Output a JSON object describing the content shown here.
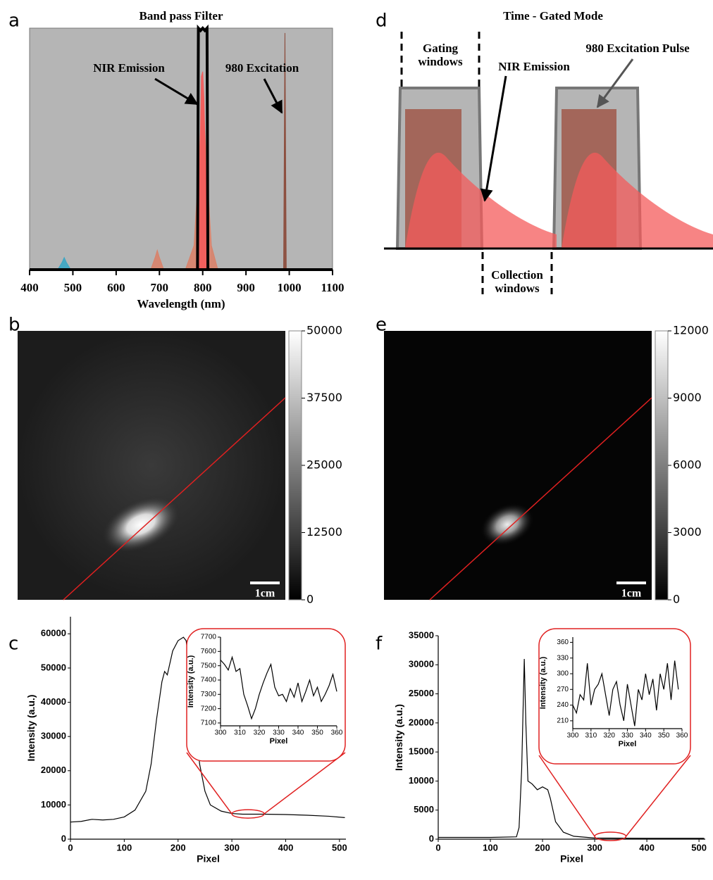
{
  "chart_data": [
    {
      "panel_label": "a",
      "type": "area",
      "title": "Band pass Filter",
      "xlabel": "Wavelength (nm)",
      "xlim": [
        400,
        1100
      ],
      "xticks": [
        400,
        500,
        600,
        700,
        800,
        900,
        1000,
        1100
      ],
      "ylim": [
        0,
        1
      ],
      "background": "#b5b5b5",
      "annotations": [
        "NIR Emission",
        "980 Excitation"
      ],
      "series": [
        {
          "color": "#3aa6c4",
          "x": [
            465,
            475,
            480,
            485,
            495
          ],
          "values": [
            0,
            0.03,
            0.05,
            0.03,
            0
          ]
        },
        {
          "color": "#d9826a",
          "x": [
            680,
            690,
            695,
            700,
            710
          ],
          "values": [
            0,
            0.05,
            0.08,
            0.05,
            0
          ]
        },
        {
          "color": "#d9826a",
          "x": [
            760,
            780,
            790,
            800,
            810,
            820,
            835
          ],
          "values": [
            0,
            0.1,
            0.4,
            0.75,
            0.4,
            0.1,
            0
          ]
        },
        {
          "color": "#f45b5b",
          "x": [
            785,
            792,
            797,
            800,
            803,
            808,
            815
          ],
          "values": [
            0,
            0.3,
            0.8,
            0.82,
            0.7,
            0.3,
            0
          ]
        },
        {
          "color": "#8b4a3a",
          "x": [
            987,
            990,
            993
          ],
          "values": [
            0,
            0.98,
            0
          ]
        },
        {
          "color": "#000000",
          "style": "outline",
          "x": [
            780,
            788,
            790,
            795,
            800,
            805,
            810,
            812,
            820
          ],
          "values": [
            0,
            0,
            1,
            0.99,
            1,
            0.99,
            1,
            0,
            0
          ]
        }
      ]
    },
    {
      "panel_label": "d",
      "type": "diagram",
      "title": "Time - Gated Mode",
      "gating_label": [
        "Gating",
        "windows"
      ],
      "emission_label": "NIR Emission",
      "pulse_label": "980 Excitation Pulse",
      "collection_label": [
        "Collection",
        "windows"
      ]
    },
    {
      "panel_label": "b",
      "type": "image",
      "ylim": [
        0,
        50000
      ],
      "yticks": [
        0,
        12500,
        25000,
        37500,
        50000
      ],
      "scale_bar": "1cm"
    },
    {
      "panel_label": "e",
      "type": "image",
      "ylim": [
        0,
        12000
      ],
      "yticks": [
        0,
        3000,
        6000,
        9000,
        12000
      ],
      "scale_bar": "1cm"
    },
    {
      "panel_label": "c",
      "type": "line",
      "xlabel": "Pixel",
      "ylabel": "Intensity (a.u.)",
      "xlim": [
        0,
        512
      ],
      "xticks": [
        0,
        100,
        200,
        300,
        400,
        500
      ],
      "ylim": [
        0,
        65000
      ],
      "yticks": [
        0,
        10000,
        20000,
        30000,
        40000,
        50000,
        60000
      ],
      "series": [
        {
          "color": "#000000",
          "x": [
            0,
            20,
            40,
            60,
            80,
            100,
            120,
            140,
            150,
            160,
            170,
            175,
            180,
            190,
            200,
            210,
            215,
            220,
            225,
            230,
            240,
            250,
            260,
            280,
            300,
            320,
            340,
            360,
            400,
            440,
            480,
            510
          ],
          "values": [
            5000,
            5200,
            5800,
            5600,
            5800,
            6500,
            8500,
            14000,
            22000,
            35000,
            46000,
            49000,
            48000,
            55000,
            58000,
            59000,
            58000,
            52000,
            50000,
            40000,
            22000,
            14000,
            10000,
            8200,
            7500,
            7300,
            7300,
            7300,
            7200,
            7000,
            6700,
            6300
          ]
        }
      ],
      "inset": {
        "xlabel": "Pixel",
        "ylabel": "Intensity (a.u.)",
        "xlim": [
          300,
          360
        ],
        "xticks": [
          300,
          310,
          320,
          330,
          340,
          350,
          360
        ],
        "ylim": [
          7080,
          7700
        ],
        "yticks": [
          7100,
          7200,
          7300,
          7400,
          7500,
          7600,
          7700
        ],
        "series": [
          {
            "color": "#000000",
            "x": [
              300,
              302,
              304,
              306,
              308,
              310,
              312,
              314,
              316,
              318,
              320,
              322,
              324,
              326,
              328,
              330,
              332,
              334,
              336,
              338,
              340,
              342,
              344,
              346,
              348,
              350,
              352,
              354,
              356,
              358,
              360
            ],
            "values": [
              7540,
              7510,
              7470,
              7560,
              7460,
              7480,
              7300,
              7220,
              7130,
              7200,
              7300,
              7380,
              7450,
              7510,
              7350,
              7290,
              7300,
              7250,
              7340,
              7280,
              7380,
              7250,
              7320,
              7400,
              7290,
              7350,
              7250,
              7300,
              7360,
              7440,
              7320
            ]
          }
        ]
      }
    },
    {
      "panel_label": "f",
      "type": "line",
      "xlabel": "Pixel",
      "ylabel": "Intensity (a.u.)",
      "xlim": [
        0,
        512
      ],
      "xticks": [
        0,
        100,
        200,
        300,
        400,
        500
      ],
      "ylim": [
        0,
        35000
      ],
      "yticks": [
        0,
        5000,
        10000,
        15000,
        20000,
        25000,
        30000,
        35000
      ],
      "series": [
        {
          "color": "#000000",
          "x": [
            0,
            100,
            150,
            155,
            160,
            165,
            168,
            172,
            180,
            190,
            200,
            210,
            215,
            225,
            240,
            260,
            300,
            400,
            510
          ],
          "values": [
            300,
            300,
            400,
            2000,
            12000,
            31000,
            20000,
            10000,
            9500,
            8500,
            9000,
            8500,
            7000,
            3000,
            1200,
            500,
            200,
            150,
            150
          ]
        }
      ],
      "inset": {
        "xlabel": "Pixel",
        "ylabel": "Intensity (a.u.)",
        "xlim": [
          300,
          360
        ],
        "xticks": [
          300,
          310,
          320,
          330,
          340,
          350,
          360
        ],
        "ylim": [
          195,
          370
        ],
        "yticks": [
          210,
          240,
          270,
          300,
          330,
          360
        ],
        "series": [
          {
            "color": "#000000",
            "x": [
              300,
              302,
              304,
              306,
              308,
              310,
              312,
              314,
              316,
              318,
              320,
              322,
              324,
              326,
              328,
              330,
              332,
              334,
              336,
              338,
              340,
              342,
              344,
              346,
              348,
              350,
              352,
              354,
              356,
              358
            ],
            "values": [
              240,
              225,
              260,
              250,
              320,
              240,
              270,
              280,
              300,
              260,
              220,
              270,
              285,
              240,
              210,
              280,
              240,
              200,
              270,
              250,
              300,
              260,
              290,
              230,
              300,
              270,
              320,
              250,
              325,
              270
            ]
          }
        ]
      }
    }
  ]
}
